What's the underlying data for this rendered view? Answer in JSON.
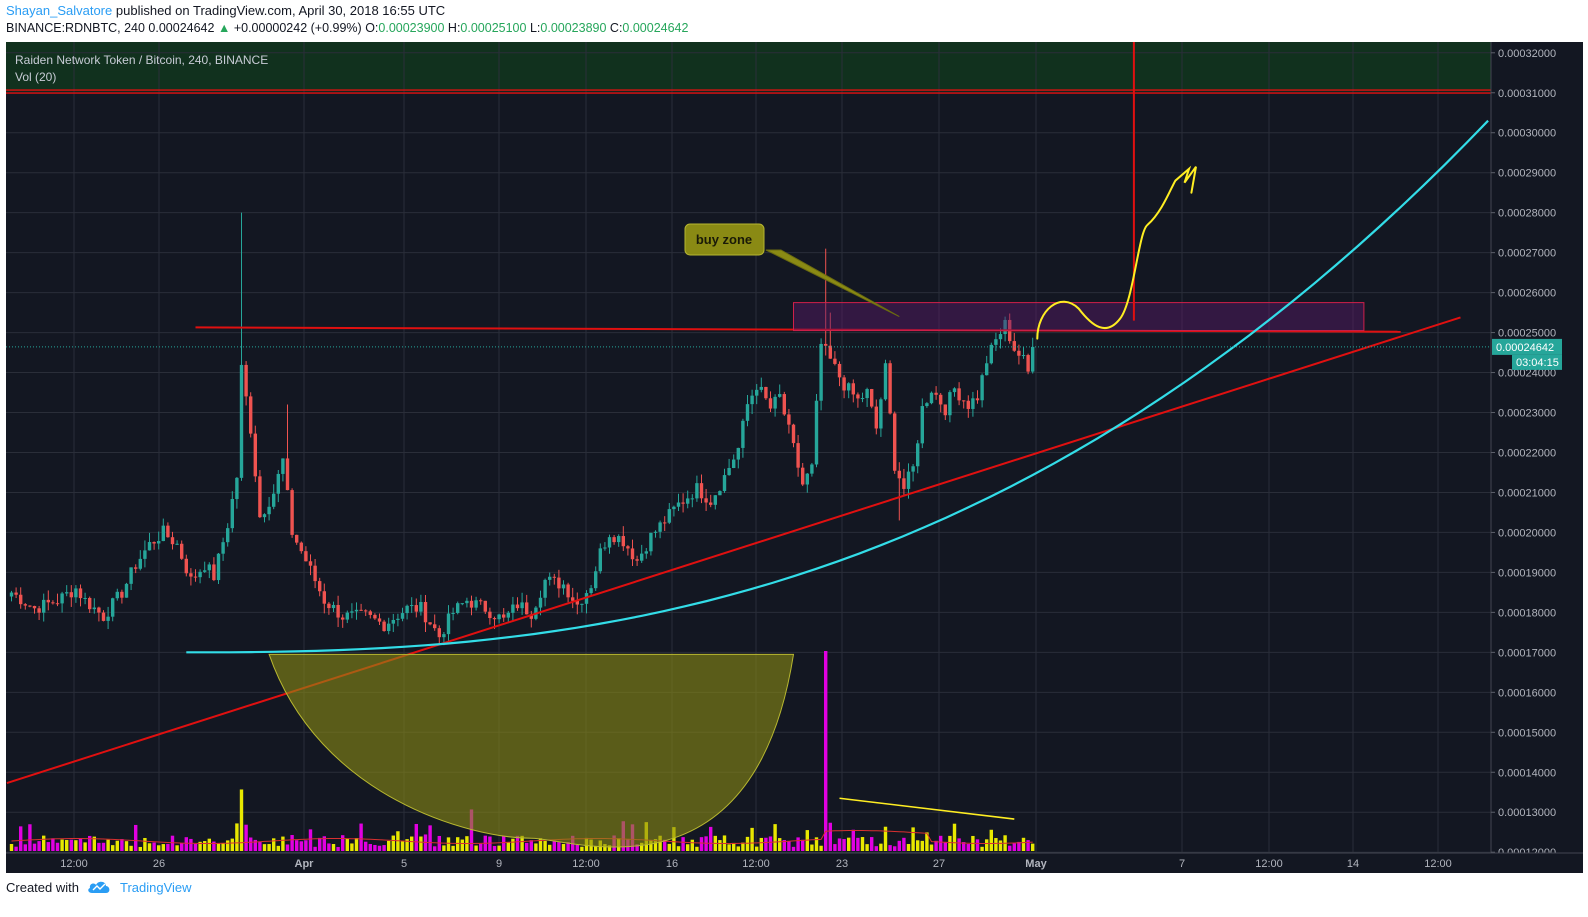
{
  "header": {
    "author": "Shayan_Salvatore",
    "published": "published on TradingView.com, April 30, 2018 16:55 UTC",
    "symbol_line": "BINANCE:RDNBTC, 240",
    "last": "0.00024642",
    "arrow": "▲",
    "change": "+0.00000242 (+0.99%)",
    "o_label": "O:",
    "o": "0.00023900",
    "h_label": "H:",
    "h": "0.00025100",
    "l_label": "L:",
    "l": "0.00023890",
    "c_label": "C:",
    "c": "0.00024642"
  },
  "legend": {
    "title": "Raiden Network Token / Bitcoin, 240, BINANCE",
    "volume": "Vol (20)"
  },
  "footer": {
    "created_with": "Created with",
    "brand": "TradingView"
  },
  "colors": {
    "background": "#131722",
    "grid": "#2a2e39",
    "up": "#26a69a",
    "down": "#ef5350",
    "volume_up": "#e8e800",
    "volume_down": "#e100e1",
    "trendline": "#e01010",
    "curve": "#33dde8",
    "cup_fill": "#8a8a14",
    "annotation": "#ffee22",
    "axis_text": "#b2b5be"
  },
  "chart_data": {
    "type": "candlestick",
    "interval": "240",
    "x_tick_labels": [
      "12:00",
      "26",
      "Apr",
      "5",
      "9",
      "12:00",
      "16",
      "12:00",
      "23",
      "27",
      "May",
      "7",
      "12:00",
      "14",
      "12:00"
    ],
    "y_tick_labels": [
      "0.00032000",
      "0.00031000",
      "0.00030000",
      "0.00029000",
      "0.00028000",
      "0.00027000",
      "0.00026000",
      "0.00025000",
      "0.00024000",
      "0.00023000",
      "0.00022000",
      "0.00021000",
      "0.00020000",
      "0.00019000",
      "0.00018000",
      "0.00017000",
      "0.00016000",
      "0.00015000",
      "0.00014000",
      "0.00013000",
      "0.00012000"
    ],
    "ylim": [
      0.0001198,
      0.0003227
    ],
    "last_price_label": "0.00024642",
    "countdown_label": "03:04:15",
    "close_path": [
      [
        0,
        0.000185
      ],
      [
        5,
        0.000181
      ],
      [
        10,
        0.000183
      ],
      [
        14,
        0.000186
      ],
      [
        16,
        0.000183
      ],
      [
        20,
        0.000179
      ],
      [
        24,
        0.000185
      ],
      [
        27,
        0.000192
      ],
      [
        30,
        0.000197
      ],
      [
        33,
        0.0002
      ],
      [
        36,
        0.000197
      ],
      [
        39,
        0.000188
      ],
      [
        42,
        0.000192
      ],
      [
        44,
        0.000189
      ],
      [
        47,
        0.000202
      ],
      [
        49,
        0.000214
      ],
      [
        50,
        0.000241
      ],
      [
        52,
        0.000226
      ],
      [
        54,
        0.000204
      ],
      [
        57,
        0.00021
      ],
      [
        59,
        0.000218
      ],
      [
        61,
        0.0002
      ],
      [
        64,
        0.000193
      ],
      [
        68,
        0.000183
      ],
      [
        72,
        0.000179
      ],
      [
        77,
        0.000179
      ],
      [
        81,
        0.000177
      ],
      [
        86,
        0.000181
      ],
      [
        89,
        0.000181
      ],
      [
        93,
        0.000174
      ],
      [
        96,
        0.00018
      ],
      [
        99,
        0.000183
      ],
      [
        103,
        0.000181
      ],
      [
        107,
        0.000178
      ],
      [
        110,
        0.000182
      ],
      [
        113,
        0.00018
      ],
      [
        116,
        0.000188
      ],
      [
        120,
        0.000187
      ],
      [
        123,
        0.000182
      ],
      [
        126,
        0.000187
      ],
      [
        128,
        0.000195
      ],
      [
        130,
        0.0002
      ],
      [
        133,
        0.000198
      ],
      [
        136,
        0.000193
      ],
      [
        139,
        0.000199
      ],
      [
        142,
        0.000203
      ],
      [
        145,
        0.000207
      ],
      [
        149,
        0.000211
      ],
      [
        152,
        0.000208
      ],
      [
        155,
        0.000214
      ],
      [
        158,
        0.000221
      ],
      [
        160,
        0.000232
      ],
      [
        162,
        0.000237
      ],
      [
        165,
        0.000231
      ],
      [
        167,
        0.000234
      ],
      [
        170,
        0.000221
      ],
      [
        172,
        0.000212
      ],
      [
        174,
        0.000216
      ],
      [
        176,
        0.000247
      ],
      [
        178,
        0.000243
      ],
      [
        181,
        0.000237
      ],
      [
        184,
        0.000233
      ],
      [
        186,
        0.000235
      ],
      [
        188,
        0.000226
      ],
      [
        190,
        0.000241
      ],
      [
        192,
        0.000217
      ],
      [
        194,
        0.000211
      ],
      [
        196,
        0.000216
      ],
      [
        198,
        0.000231
      ],
      [
        200,
        0.000236
      ],
      [
        203,
        0.000231
      ],
      [
        205,
        0.000236
      ],
      [
        208,
        0.000232
      ],
      [
        210,
        0.000234
      ],
      [
        212,
        0.000243
      ],
      [
        214,
        0.000248
      ],
      [
        216,
        0.000252
      ],
      [
        218,
        0.000246
      ],
      [
        220,
        0.000243
      ],
      [
        221,
        0.00024
      ],
      [
        222,
        0.000246
      ]
    ],
    "volume_spikes": [
      {
        "bar": 50,
        "volume": 0.00016
      },
      {
        "bar": 60,
        "volume": 1.7e-05
      },
      {
        "bar": 90,
        "volume": 4.3e-05
      },
      {
        "bar": 100,
        "volume": 0.000108
      },
      {
        "bar": 177,
        "volume": 0.00052
      }
    ],
    "drawings": [
      {
        "type": "horizontal-line",
        "price": 0.0003103
      },
      {
        "type": "trendline",
        "from": [
          -1,
          0.0001373
        ],
        "to": [
          315,
          0.0002538
        ]
      },
      {
        "type": "trendline",
        "from": [
          40,
          0.0002513
        ],
        "to": [
          302,
          0.0002502
        ]
      },
      {
        "type": "rectangle",
        "from_bar": 170,
        "to_bar": 294,
        "top": 0.0002575,
        "bottom": 0.0002505
      },
      {
        "type": "vertical-line",
        "bar": 244,
        "from": 0.0003227,
        "to": 0.000253
      },
      {
        "type": "curve",
        "from_bar": 38,
        "to_bar": 321
      },
      {
        "type": "cup-shape",
        "from_bar": 56,
        "to_bar": 170
      },
      {
        "type": "callout",
        "text": "buy zone",
        "target": [
          193,
          0.000254
        ]
      },
      {
        "type": "brush",
        "description": "projected path"
      }
    ]
  }
}
